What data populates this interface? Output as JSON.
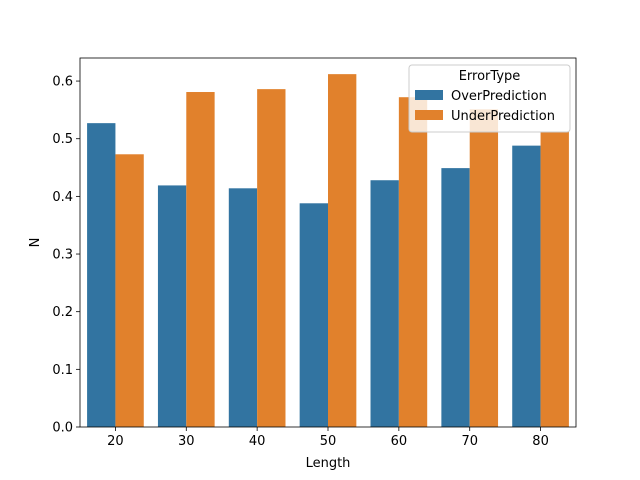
{
  "chart_data": {
    "type": "bar",
    "title": "",
    "xlabel": "Length",
    "ylabel": "N",
    "categories": [
      "20",
      "30",
      "40",
      "50",
      "60",
      "70",
      "80"
    ],
    "series": [
      {
        "name": "OverPrediction",
        "color": "#3274a1",
        "values": [
          0.527,
          0.419,
          0.414,
          0.388,
          0.428,
          0.449,
          0.488
        ]
      },
      {
        "name": "UnderPrediction",
        "color": "#e1812c",
        "values": [
          0.473,
          0.581,
          0.586,
          0.612,
          0.572,
          0.551,
          0.512
        ]
      }
    ],
    "ylim": [
      0,
      0.64
    ],
    "yticks": [
      "0.0",
      "0.1",
      "0.2",
      "0.3",
      "0.4",
      "0.5",
      "0.6"
    ],
    "grid": false,
    "legend": {
      "title": "ErrorType",
      "placement": "top-right"
    }
  }
}
